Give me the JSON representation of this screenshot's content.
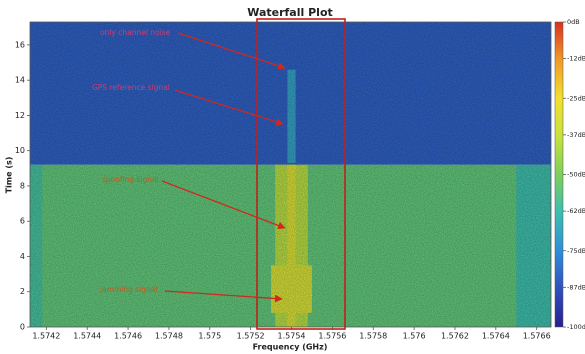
{
  "chart_data": {
    "type": "heatmap",
    "title": "Waterfall Plot",
    "xlabel": "Frequency (GHz)",
    "ylabel": "Time (s)",
    "xlim": [
      1.57412,
      1.57667
    ],
    "ylim": [
      0,
      17.3
    ],
    "xticks": [
      1.5742,
      1.5744,
      1.5746,
      1.5748,
      1.575,
      1.5752,
      1.5754,
      1.5756,
      1.5758,
      1.576,
      1.5762,
      1.5764,
      1.5766
    ],
    "yticks": [
      0,
      2,
      4,
      6,
      8,
      10,
      12,
      14,
      16
    ],
    "clim": [
      -100,
      0
    ],
    "cticks": [
      {
        "value": 0,
        "label": "0dB"
      },
      {
        "value": -12,
        "label": "-12dB"
      },
      {
        "value": -25,
        "label": "-25dB"
      },
      {
        "value": -37,
        "label": "-37dB"
      },
      {
        "value": -50,
        "label": "-50dB"
      },
      {
        "value": -62,
        "label": "-62dB"
      },
      {
        "value": -75,
        "label": "-75dB"
      },
      {
        "value": -87,
        "label": "-87dB"
      },
      {
        "value": -100,
        "label": "-100dB"
      }
    ],
    "colormap": [
      "#2a1e8f",
      "#2f4fbf",
      "#2f8fd6",
      "#3bbfb0",
      "#7dd05a",
      "#c7e23e",
      "#f3e02e",
      "#f29a26",
      "#d7301f"
    ],
    "cells": [
      {
        "x": [
          1.57412,
          1.57667
        ],
        "y": [
          9.2,
          17.3
        ],
        "value": -84
      },
      {
        "x": [
          1.57412,
          1.57667
        ],
        "y": [
          0,
          9.2
        ],
        "value": -55
      },
      {
        "x": [
          1.5765,
          1.57667
        ],
        "y": [
          0,
          9.2
        ],
        "value": -62
      },
      {
        "x": [
          1.57412,
          1.57418
        ],
        "y": [
          0,
          9.2
        ],
        "value": -60
      },
      {
        "x": [
          1.57538,
          1.57542
        ],
        "y": [
          9.3,
          14.6
        ],
        "value": -70
      },
      {
        "x": [
          1.57532,
          1.57548
        ],
        "y": [
          0,
          9.2
        ],
        "value": -40
      },
      {
        "x": [
          1.57538,
          1.57542
        ],
        "y": [
          0,
          9.2
        ],
        "value": -32
      },
      {
        "x": [
          1.5753,
          1.5755
        ],
        "y": [
          0.8,
          3.5
        ],
        "value": -33
      }
    ],
    "annotations": [
      "only channel noise",
      "GPS reference signal",
      "spoofing signal",
      "jamming signal"
    ]
  }
}
